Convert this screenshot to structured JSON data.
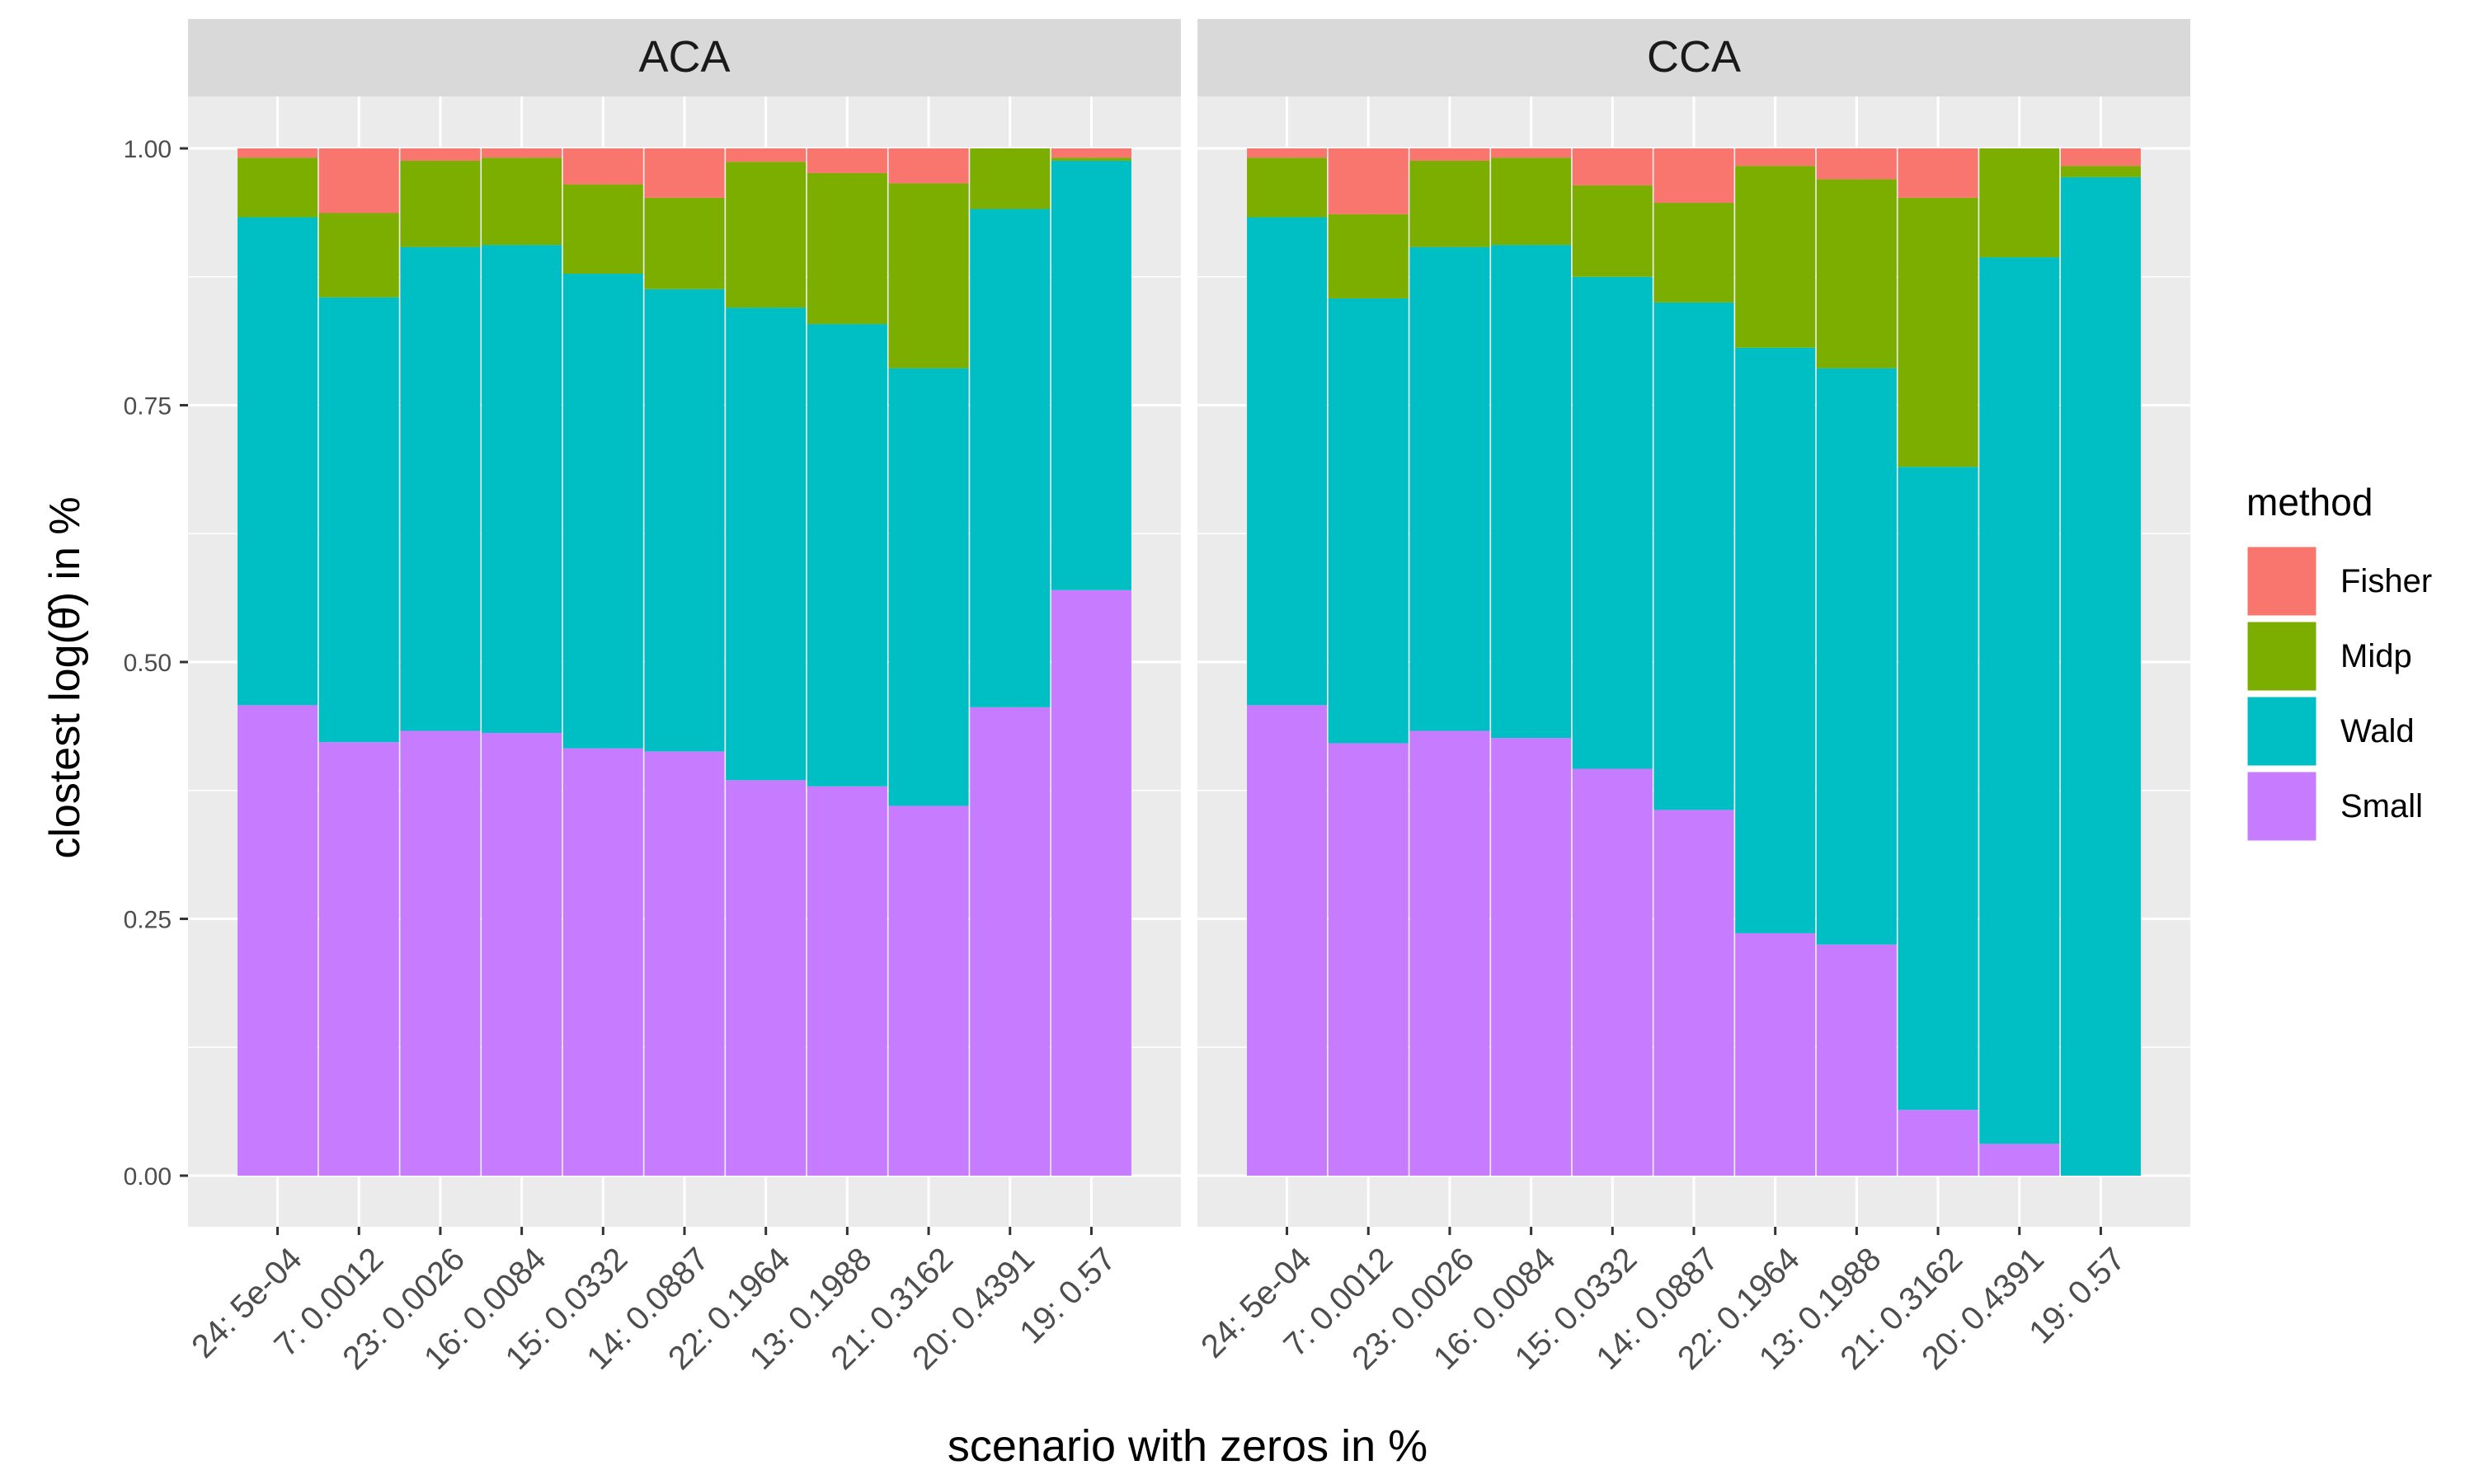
{
  "chart_data": {
    "type": "bar",
    "stacked": true,
    "xlabel": "scenario with zeros in %",
    "ylabel": "clostest log(θ̂) in %",
    "ylim": [
      0,
      1
    ],
    "yticks": [
      "0.00",
      "0.25",
      "0.50",
      "0.75",
      "1.00"
    ],
    "categories": [
      "24: 5e-04",
      "7: 0.0012",
      "23: 0.0026",
      "16: 0.0084",
      "15: 0.0332",
      "14: 0.0887",
      "22: 0.1964",
      "13: 0.1988",
      "21: 0.3162",
      "20: 0.4391",
      "19: 0.57"
    ],
    "legend": {
      "title": "method",
      "position": "right",
      "items": [
        "Fisher",
        "Midp",
        "Wald",
        "Small"
      ]
    },
    "colors": {
      "Fisher": "#F8766D",
      "Midp": "#7CAE00",
      "Wald": "#00BFC4",
      "Small": "#C77CFF",
      "panel": "#EBEBEB",
      "strip": "#D9D9D9",
      "grid": "#FFFFFF"
    },
    "panels": [
      {
        "title": "ACA",
        "series": [
          {
            "name": "Small",
            "values": [
              0.458,
              0.422,
              0.433,
              0.431,
              0.416,
              0.413,
              0.385,
              0.379,
              0.36,
              0.456,
              0.57
            ]
          },
          {
            "name": "Wald",
            "values": [
              0.475,
              0.433,
              0.471,
              0.475,
              0.462,
              0.45,
              0.46,
              0.45,
              0.426,
              0.485,
              0.418
            ]
          },
          {
            "name": "Midp",
            "values": [
              0.058,
              0.082,
              0.084,
              0.085,
              0.087,
              0.089,
              0.142,
              0.147,
              0.18,
              0.059,
              0.003
            ]
          },
          {
            "name": "Fisher",
            "values": [
              0.009,
              0.063,
              0.012,
              0.009,
              0.035,
              0.048,
              0.013,
              0.024,
              0.034,
              0.0,
              0.009
            ]
          }
        ]
      },
      {
        "title": "CCA",
        "series": [
          {
            "name": "Small",
            "values": [
              0.458,
              0.421,
              0.433,
              0.426,
              0.396,
              0.356,
              0.236,
              0.225,
              0.064,
              0.031,
              0.0
            ]
          },
          {
            "name": "Wald",
            "values": [
              0.475,
              0.433,
              0.471,
              0.48,
              0.479,
              0.494,
              0.57,
              0.561,
              0.626,
              0.863,
              0.972
            ]
          },
          {
            "name": "Midp",
            "values": [
              0.058,
              0.082,
              0.084,
              0.085,
              0.089,
              0.097,
              0.177,
              0.184,
              0.262,
              0.106,
              0.011
            ]
          },
          {
            "name": "Fisher",
            "values": [
              0.009,
              0.064,
              0.012,
              0.009,
              0.036,
              0.053,
              0.017,
              0.03,
              0.048,
              0.0,
              0.017
            ]
          }
        ]
      }
    ]
  }
}
